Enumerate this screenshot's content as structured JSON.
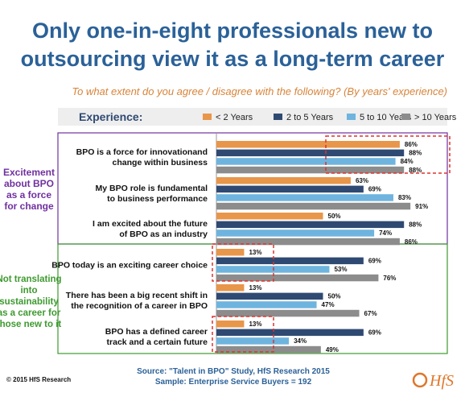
{
  "title_lines": [
    "Only one-in-eight professionals new to",
    "outsourcing view it as a long-term career"
  ],
  "subtitle": "To what extent do you agree / disagree with the following? (By years' experience)",
  "legend": {
    "heading": "Experience:"
  },
  "groups": [
    {
      "label_lines": [
        "Excitement",
        "about BPO",
        "as a force",
        "for change"
      ],
      "color": "#7030a0"
    },
    {
      "label_lines": [
        "Not translating",
        "into",
        "sustainability",
        "as a career for",
        "those new to it"
      ],
      "color": "#3e9a30"
    }
  ],
  "chart_data": {
    "type": "bar",
    "orientation": "horizontal",
    "categories": [
      [
        "BPO is a force for innovationand",
        "change within business"
      ],
      [
        "My BPO role is fundamental",
        "to business performance"
      ],
      [
        "I am excited about the future",
        "of BPO as an industry"
      ],
      [
        "BPO today is an exciting career choice"
      ],
      [
        "There has been a big recent shift in",
        "the recognition of a career in BPO"
      ],
      [
        "BPO has a defined career",
        "track and a certain future"
      ]
    ],
    "series": [
      {
        "name": "< 2 Years",
        "color": "#e8964a",
        "values": [
          86,
          63,
          50,
          13,
          13,
          13
        ]
      },
      {
        "name": "2 to 5 Years",
        "color": "#2f4a72",
        "values": [
          88,
          69,
          88,
          69,
          50,
          69
        ]
      },
      {
        "name": "5 to 10 Years",
        "color": "#6eb4de",
        "values": [
          84,
          83,
          74,
          53,
          47,
          34
        ]
      },
      {
        "name": "> 10 Years",
        "color": "#8c8c8c",
        "values": [
          88,
          91,
          86,
          76,
          67,
          49
        ]
      }
    ],
    "value_suffix": "%",
    "xlim": [
      0,
      100
    ],
    "highlight_color": "#e0312b"
  },
  "source_lines": [
    "Source: \"Talent in BPO\" Study, HfS Research 2015",
    "Sample: Enterprise Service Buyers = 192"
  ],
  "copyright": "© 2015 HfS Research",
  "logo_text": "HfS"
}
